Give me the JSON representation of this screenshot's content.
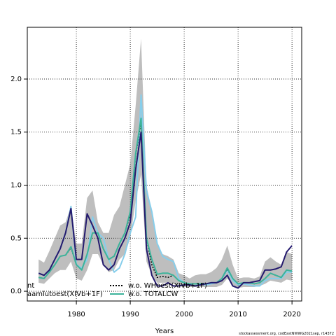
{
  "chart_data": {
    "type": "line",
    "xlabel": "Years",
    "footnote": "stockassessment.org, codEastNWWG2021sep, r14372",
    "x": [
      1973,
      1974,
      1975,
      1976,
      1977,
      1978,
      1979,
      1980,
      1981,
      1982,
      1983,
      1984,
      1985,
      1986,
      1987,
      1988,
      1989,
      1990,
      1991,
      1992,
      1993,
      1994,
      1995,
      1996,
      1997,
      1998,
      1999,
      2000,
      2001,
      2002,
      2003,
      2004,
      2005,
      2006,
      2007,
      2008,
      2009,
      2010,
      2011,
      2012,
      2013,
      2014,
      2015,
      2016,
      2017,
      2018,
      2019,
      2020
    ],
    "band": {
      "color": "#bebebe",
      "lower": [
        0.08,
        0.07,
        0.12,
        0.17,
        0.2,
        0.2,
        0.28,
        0.12,
        0.1,
        0.2,
        0.35,
        0.35,
        0.25,
        0.18,
        0.2,
        0.3,
        0.35,
        0.5,
        0.85,
        1.1,
        0.28,
        0.15,
        0.08,
        0.08,
        0.08,
        0.07,
        0.05,
        0.04,
        0.04,
        0.04,
        0.04,
        0.04,
        0.04,
        0.04,
        0.06,
        0.12,
        0.06,
        0.03,
        0.04,
        0.04,
        0.04,
        0.05,
        0.07,
        0.1,
        0.09,
        0.08,
        0.11,
        0.1
      ],
      "upper": [
        0.3,
        0.27,
        0.38,
        0.5,
        0.62,
        0.65,
        0.8,
        0.45,
        0.45,
        0.88,
        0.95,
        0.65,
        0.55,
        0.55,
        0.72,
        0.8,
        1.0,
        1.2,
        1.75,
        2.38,
        1.0,
        0.75,
        0.45,
        0.35,
        0.33,
        0.3,
        0.17,
        0.15,
        0.12,
        0.15,
        0.16,
        0.16,
        0.18,
        0.22,
        0.3,
        0.43,
        0.25,
        0.12,
        0.13,
        0.13,
        0.12,
        0.14,
        0.28,
        0.32,
        0.28,
        0.25,
        0.37,
        0.35
      ]
    },
    "series": [
      {
        "name": "aamlutoest(XIVb+1F)",
        "color": "#87ceeb",
        "dash": false,
        "values": [
          0.17,
          0.15,
          0.2,
          0.3,
          0.4,
          0.55,
          0.8,
          0.25,
          0.22,
          0.3,
          0.7,
          0.55,
          0.5,
          0.3,
          0.18,
          0.22,
          0.35,
          0.55,
          0.7,
          1.85,
          0.95,
          0.75,
          0.45,
          0.33,
          0.3,
          0.28,
          0.12,
          0.08,
          0.07,
          0.07,
          0.07,
          0.06,
          0.07,
          0.08,
          0.12,
          0.2,
          0.1,
          0.06,
          0.07,
          0.06,
          0.05,
          0.05,
          0.1,
          0.12,
          0.12,
          0.12,
          0.18,
          0.18
        ]
      },
      {
        "name": "w.o. WHoest(XIVb+1F)",
        "color": "#000000",
        "dash": true,
        "values": [
          0.13,
          0.12,
          0.18,
          0.25,
          0.33,
          0.34,
          0.41,
          0.25,
          0.2,
          0.35,
          0.55,
          0.55,
          0.4,
          0.3,
          0.33,
          0.45,
          0.55,
          0.72,
          1.28,
          1.6,
          0.5,
          0.25,
          0.13,
          0.14,
          0.13,
          0.15,
          0.1,
          0.08,
          0.07,
          0.07,
          0.07,
          0.07,
          0.08,
          0.08,
          0.12,
          0.21,
          0.12,
          0.07,
          0.08,
          0.08,
          0.07,
          0.08,
          0.12,
          0.17,
          0.15,
          0.13,
          0.2,
          0.19
        ]
      },
      {
        "name": "w.o. TOTALCW",
        "color": "#3cb39a",
        "dash": false,
        "values": [
          0.13,
          0.12,
          0.18,
          0.25,
          0.33,
          0.34,
          0.42,
          0.25,
          0.2,
          0.35,
          0.55,
          0.55,
          0.4,
          0.3,
          0.33,
          0.45,
          0.55,
          0.75,
          1.3,
          1.63,
          0.5,
          0.3,
          0.16,
          0.17,
          0.17,
          0.15,
          0.1,
          0.08,
          0.07,
          0.07,
          0.07,
          0.07,
          0.08,
          0.08,
          0.12,
          0.22,
          0.12,
          0.07,
          0.08,
          0.08,
          0.07,
          0.08,
          0.12,
          0.17,
          0.15,
          0.13,
          0.2,
          0.19
        ]
      },
      {
        "name": "nt",
        "color": "#241a6e",
        "dash": false,
        "values": [
          0.17,
          0.15,
          0.2,
          0.3,
          0.4,
          0.55,
          0.78,
          0.3,
          0.3,
          0.73,
          0.62,
          0.5,
          0.25,
          0.2,
          0.25,
          0.4,
          0.5,
          0.65,
          1.15,
          1.5,
          0.4,
          0.15,
          0.05,
          0.05,
          0.08,
          0.05,
          0.05,
          0.06,
          0.06,
          0.05,
          0.06,
          0.07,
          0.08,
          0.08,
          0.1,
          0.15,
          0.05,
          0.03,
          0.08,
          0.08,
          0.09,
          0.1,
          0.2,
          0.2,
          0.21,
          0.23,
          0.37,
          0.43
        ]
      }
    ],
    "xlim": [
      1970.9,
      2021.8
    ],
    "ylim": [
      -0.092,
      2.488
    ],
    "xticks": [
      1980,
      1990,
      2000,
      2010,
      2020
    ],
    "yticks": [
      {
        "value": 0,
        "label": "0.0"
      },
      {
        "value": 0.5,
        "label": "0.5"
      },
      {
        "value": 1,
        "label": "1.0"
      },
      {
        "value": 1.5,
        "label": "1.5"
      },
      {
        "value": 2,
        "label": "2.0"
      }
    ],
    "grid": true
  }
}
